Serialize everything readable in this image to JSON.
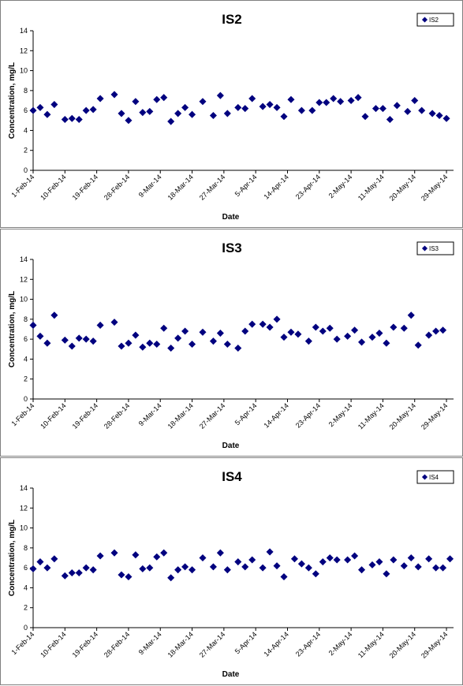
{
  "colors": {
    "marker": "#00007f",
    "axis": "#000000",
    "frame": "#7f7f7f"
  },
  "chart_data": [
    {
      "type": "scatter",
      "title": "IS2",
      "xlabel": "Date",
      "ylabel": "Concentration, mg/L",
      "legend": {
        "entries": [
          "IS2"
        ],
        "placement": "top-right"
      },
      "grid": false,
      "ylim": [
        0,
        14
      ],
      "yticks": [
        0,
        2,
        4,
        6,
        8,
        10,
        12,
        14
      ],
      "xlim": [
        "2014-02-01",
        "2014-05-31"
      ],
      "xticks": [
        "1-Feb-14",
        "10-Feb-14",
        "19-Feb-14",
        "28-Feb-14",
        "9-Mar-14",
        "18-Mar-14",
        "27-Mar-14",
        "5-Apr-14",
        "14-Apr-14",
        "23-Apr-14",
        "2-May-14",
        "11-May-14",
        "20-May-14",
        "29-May-14"
      ],
      "series": [
        {
          "name": "IS2",
          "x": [
            "2014-02-01",
            "2014-02-03",
            "2014-02-05",
            "2014-02-07",
            "2014-02-10",
            "2014-02-12",
            "2014-02-14",
            "2014-02-16",
            "2014-02-18",
            "2014-02-20",
            "2014-02-24",
            "2014-02-26",
            "2014-02-28",
            "2014-03-02",
            "2014-03-04",
            "2014-03-06",
            "2014-03-08",
            "2014-03-10",
            "2014-03-12",
            "2014-03-14",
            "2014-03-16",
            "2014-03-18",
            "2014-03-21",
            "2014-03-24",
            "2014-03-26",
            "2014-03-28",
            "2014-03-31",
            "2014-04-02",
            "2014-04-04",
            "2014-04-07",
            "2014-04-09",
            "2014-04-11",
            "2014-04-13",
            "2014-04-15",
            "2014-04-18",
            "2014-04-21",
            "2014-04-23",
            "2014-04-25",
            "2014-04-27",
            "2014-04-29",
            "2014-05-02",
            "2014-05-04",
            "2014-05-06",
            "2014-05-09",
            "2014-05-11",
            "2014-05-13",
            "2014-05-15",
            "2014-05-18",
            "2014-05-20",
            "2014-05-22",
            "2014-05-25",
            "2014-05-27",
            "2014-05-29"
          ],
          "y": [
            6.0,
            6.3,
            5.6,
            6.6,
            5.1,
            5.2,
            5.1,
            6.0,
            6.1,
            7.2,
            7.6,
            5.7,
            5.0,
            6.9,
            5.8,
            5.9,
            7.1,
            7.3,
            4.9,
            5.7,
            6.3,
            5.6,
            6.9,
            5.5,
            7.5,
            5.7,
            6.3,
            6.2,
            7.2,
            6.4,
            6.6,
            6.3,
            5.4,
            7.1,
            6.0,
            6.0,
            6.8,
            6.8,
            7.2,
            6.9,
            7.0,
            7.3,
            5.4,
            6.2,
            6.2,
            5.1,
            6.5,
            5.9,
            7.0,
            6.0,
            5.7,
            5.5,
            5.2
          ]
        }
      ]
    },
    {
      "type": "scatter",
      "title": "IS3",
      "xlabel": "Date",
      "ylabel": "Concentration, mg/L",
      "legend": {
        "entries": [
          "IS3"
        ],
        "placement": "top-right"
      },
      "grid": false,
      "ylim": [
        0,
        14
      ],
      "yticks": [
        0,
        2,
        4,
        6,
        8,
        10,
        12,
        14
      ],
      "xlim": [
        "2014-02-01",
        "2014-05-31"
      ],
      "xticks": [
        "1-Feb-14",
        "10-Feb-14",
        "19-Feb-14",
        "28-Feb-14",
        "9-Mar-14",
        "18-Mar-14",
        "27-Mar-14",
        "5-Apr-14",
        "14-Apr-14",
        "23-Apr-14",
        "2-May-14",
        "11-May-14",
        "20-May-14",
        "29-May-14"
      ],
      "series": [
        {
          "name": "IS3",
          "x": [
            "2014-02-01",
            "2014-02-03",
            "2014-02-05",
            "2014-02-07",
            "2014-02-10",
            "2014-02-12",
            "2014-02-14",
            "2014-02-16",
            "2014-02-18",
            "2014-02-20",
            "2014-02-24",
            "2014-02-26",
            "2014-02-28",
            "2014-03-02",
            "2014-03-04",
            "2014-03-06",
            "2014-03-08",
            "2014-03-10",
            "2014-03-12",
            "2014-03-14",
            "2014-03-16",
            "2014-03-18",
            "2014-03-21",
            "2014-03-24",
            "2014-03-26",
            "2014-03-28",
            "2014-03-31",
            "2014-04-02",
            "2014-04-04",
            "2014-04-07",
            "2014-04-09",
            "2014-04-11",
            "2014-04-13",
            "2014-04-15",
            "2014-04-17",
            "2014-04-20",
            "2014-04-22",
            "2014-04-24",
            "2014-04-26",
            "2014-04-28",
            "2014-05-01",
            "2014-05-03",
            "2014-05-05",
            "2014-05-08",
            "2014-05-10",
            "2014-05-12",
            "2014-05-14",
            "2014-05-17",
            "2014-05-19",
            "2014-05-21",
            "2014-05-24",
            "2014-05-26",
            "2014-05-28"
          ],
          "y": [
            7.4,
            6.3,
            5.6,
            8.4,
            5.9,
            5.3,
            6.1,
            6.0,
            5.8,
            7.4,
            7.7,
            5.3,
            5.6,
            6.4,
            5.2,
            5.6,
            5.5,
            7.1,
            5.1,
            6.1,
            6.8,
            5.5,
            6.7,
            5.8,
            6.6,
            5.5,
            5.1,
            6.8,
            7.5,
            7.5,
            7.2,
            8.0,
            6.2,
            6.7,
            6.5,
            5.8,
            7.2,
            6.8,
            7.1,
            6.0,
            6.3,
            6.9,
            5.7,
            6.2,
            6.6,
            5.6,
            7.2,
            7.1,
            8.4,
            5.4,
            6.4,
            6.8,
            6.9
          ]
        }
      ]
    },
    {
      "type": "scatter",
      "title": "IS4",
      "xlabel": "Date",
      "ylabel": "Concentration, mg/L",
      "legend": {
        "entries": [
          "IS4"
        ],
        "placement": "top-right"
      },
      "grid": false,
      "ylim": [
        0,
        14
      ],
      "yticks": [
        0,
        2,
        4,
        6,
        8,
        10,
        12,
        14
      ],
      "xlim": [
        "2014-02-01",
        "2014-05-31"
      ],
      "xticks": [
        "1-Feb-14",
        "10-Feb-14",
        "19-Feb-14",
        "28-Feb-14",
        "9-Mar-14",
        "18-Mar-14",
        "27-Mar-14",
        "5-Apr-14",
        "14-Apr-14",
        "23-Apr-14",
        "2-May-14",
        "11-May-14",
        "20-May-14",
        "29-May-14"
      ],
      "series": [
        {
          "name": "IS4",
          "x": [
            "2014-02-01",
            "2014-02-03",
            "2014-02-05",
            "2014-02-07",
            "2014-02-10",
            "2014-02-12",
            "2014-02-14",
            "2014-02-16",
            "2014-02-18",
            "2014-02-20",
            "2014-02-24",
            "2014-02-26",
            "2014-02-28",
            "2014-03-02",
            "2014-03-04",
            "2014-03-06",
            "2014-03-08",
            "2014-03-10",
            "2014-03-12",
            "2014-03-14",
            "2014-03-16",
            "2014-03-18",
            "2014-03-21",
            "2014-03-24",
            "2014-03-26",
            "2014-03-28",
            "2014-03-31",
            "2014-04-02",
            "2014-04-04",
            "2014-04-07",
            "2014-04-09",
            "2014-04-11",
            "2014-04-13",
            "2014-04-16",
            "2014-04-18",
            "2014-04-20",
            "2014-04-22",
            "2014-04-24",
            "2014-04-26",
            "2014-04-28",
            "2014-05-01",
            "2014-05-03",
            "2014-05-05",
            "2014-05-08",
            "2014-05-10",
            "2014-05-12",
            "2014-05-14",
            "2014-05-17",
            "2014-05-19",
            "2014-05-21",
            "2014-05-24",
            "2014-05-26",
            "2014-05-28",
            "2014-05-30"
          ],
          "y": [
            5.9,
            6.6,
            6.0,
            6.9,
            5.2,
            5.5,
            5.5,
            6.0,
            5.8,
            7.2,
            7.5,
            5.3,
            5.1,
            7.3,
            5.9,
            6.0,
            7.1,
            7.5,
            5.0,
            5.8,
            6.1,
            5.8,
            7.0,
            6.1,
            7.5,
            5.8,
            6.6,
            6.1,
            6.8,
            6.0,
            7.6,
            6.2,
            5.1,
            6.9,
            6.4,
            6.0,
            5.4,
            6.6,
            7.0,
            6.8,
            6.8,
            7.2,
            5.8,
            6.3,
            6.6,
            5.4,
            6.8,
            6.2,
            7.0,
            6.1,
            6.9,
            6.0,
            6.0,
            6.9
          ]
        }
      ]
    }
  ]
}
